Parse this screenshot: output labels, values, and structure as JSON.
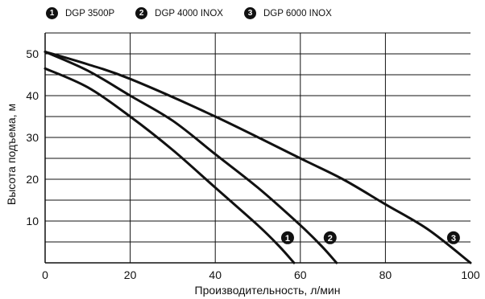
{
  "chart_data": {
    "type": "line",
    "title": "",
    "xlabel": "Производительность, л/мин",
    "ylabel": "Высота подъема, м",
    "xlim": [
      0,
      100
    ],
    "ylim": [
      0,
      55
    ],
    "xticks": [
      0,
      20,
      40,
      60,
      80,
      100
    ],
    "yticks": [
      10,
      20,
      30,
      40,
      50
    ],
    "grid": "horizontal",
    "legend_position": "top-left",
    "line_color": "#111111",
    "series": [
      {
        "name": "DGP 3500P",
        "marker": "1",
        "marker_at": {
          "x": 57,
          "y": 6
        },
        "points": [
          [
            0,
            46.5
          ],
          [
            10,
            42
          ],
          [
            20,
            35
          ],
          [
            30,
            27
          ],
          [
            40,
            18
          ],
          [
            50,
            9
          ],
          [
            55,
            4
          ],
          [
            58.5,
            0
          ]
        ]
      },
      {
        "name": "DGP 4000 INOX",
        "marker": "2",
        "marker_at": {
          "x": 67,
          "y": 6
        },
        "points": [
          [
            0,
            50.5
          ],
          [
            10,
            46
          ],
          [
            20,
            40
          ],
          [
            30,
            34
          ],
          [
            40,
            26
          ],
          [
            50,
            18
          ],
          [
            60,
            9
          ],
          [
            65,
            4
          ],
          [
            68.5,
            0
          ]
        ]
      },
      {
        "name": "DGP 6000 INOX",
        "marker": "3",
        "marker_at": {
          "x": 96,
          "y": 6
        },
        "points": [
          [
            0,
            50.5
          ],
          [
            10,
            47.5
          ],
          [
            20,
            44
          ],
          [
            40,
            35
          ],
          [
            60,
            25
          ],
          [
            70,
            20
          ],
          [
            80,
            14
          ],
          [
            90,
            8
          ],
          [
            100,
            0
          ]
        ]
      }
    ]
  }
}
